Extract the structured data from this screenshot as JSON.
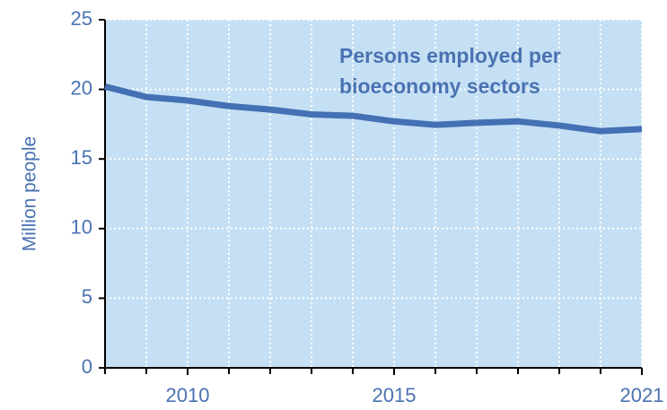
{
  "chart_data": {
    "type": "line",
    "x": [
      2008,
      2009,
      2010,
      2011,
      2012,
      2013,
      2014,
      2015,
      2016,
      2017,
      2018,
      2019,
      2020,
      2021
    ],
    "series": [
      {
        "color": "#4470b4",
        "values": [
          20.2,
          19.45,
          19.2,
          18.8,
          18.55,
          18.2,
          18.1,
          17.7,
          17.45,
          17.6,
          17.7,
          17.4,
          17.0,
          17.15
        ]
      }
    ],
    "annotation": [
      "Persons employed per",
      "bioeconomy sectors"
    ],
    "ylabel": "Million people",
    "xlim": [
      2008,
      2021
    ],
    "xticks": [
      2010,
      2015,
      2021
    ],
    "ylim": [
      0,
      25
    ],
    "yticks": [
      0,
      5,
      10,
      15,
      20,
      25
    ],
    "grid": true,
    "background": "#c5e0f4"
  }
}
